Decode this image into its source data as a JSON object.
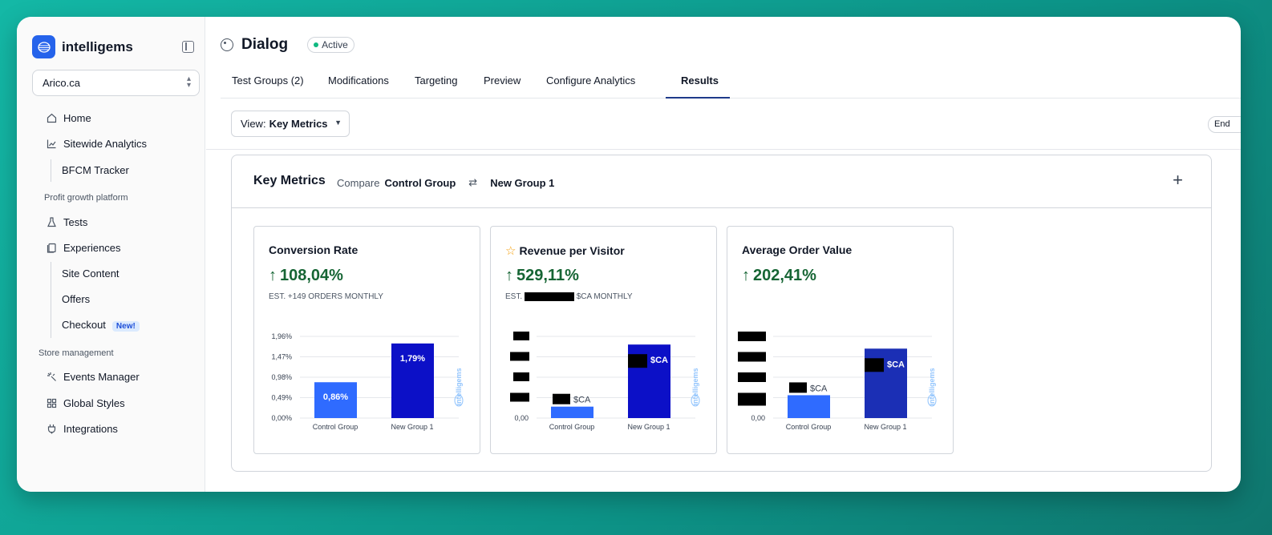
{
  "brand": {
    "name": "intelligems"
  },
  "sidebar": {
    "store": "Arico.ca",
    "items": [
      {
        "label": "Home",
        "icon": "home-icon"
      },
      {
        "label": "Sitewide Analytics",
        "icon": "chart-icon"
      },
      {
        "label": "BFCM Tracker"
      },
      {
        "label": "Profit growth platform"
      },
      {
        "label": "Tests",
        "icon": "flask-icon"
      },
      {
        "label": "Experiences",
        "icon": "layers-icon"
      },
      {
        "label": "Site Content"
      },
      {
        "label": "Offers"
      },
      {
        "label": "Checkout",
        "badge": "New!"
      },
      {
        "label": "Store management"
      },
      {
        "label": "Events Manager",
        "icon": "sparkle-icon"
      },
      {
        "label": "Global Styles",
        "icon": "grid-icon"
      },
      {
        "label": "Integrations",
        "icon": "plug-icon"
      }
    ]
  },
  "header": {
    "title": "Dialog",
    "status": "Active",
    "icon": "palette-icon"
  },
  "tabs": [
    {
      "label": "Test Groups (2)"
    },
    {
      "label": "Modifications"
    },
    {
      "label": "Targeting"
    },
    {
      "label": "Preview"
    },
    {
      "label": "Configure Analytics"
    },
    {
      "label": "Results",
      "active": true
    }
  ],
  "toolbar": {
    "view_prefix": "View:",
    "view_value": "Key Metrics",
    "end_label": "End"
  },
  "panel": {
    "title": "Key Metrics",
    "compare_label": "Compare",
    "group_a": "Control Group",
    "group_b": "New Group 1"
  },
  "cards": [
    {
      "title": "Conversion Rate",
      "value": "108,04%",
      "sub": "EST. +149 ORDERS MONTHLY"
    },
    {
      "title": "Revenue per Visitor",
      "value": "529,11%",
      "sub_prefix": "EST.",
      "sub_suffix": "$CA MONTHLY"
    },
    {
      "title": "Average Order Value",
      "value": "202,41%"
    }
  ],
  "watermark": "intelligems",
  "chart_data": [
    {
      "type": "bar",
      "title": "Conversion Rate",
      "categories": [
        "Control Group",
        "New Group 1"
      ],
      "values": [
        0.86,
        1.79
      ],
      "value_labels": [
        "0,86%",
        "1,79%"
      ],
      "y_ticks": [
        "0,00%",
        "0,49%",
        "0,98%",
        "1,47%",
        "1,96%"
      ],
      "ylim": [
        0,
        1.96
      ],
      "colors": [
        "#2f6bff",
        "#0c10c7"
      ]
    },
    {
      "type": "bar",
      "title": "Revenue per Visitor",
      "categories": [
        "Control Group",
        "New Group 1"
      ],
      "values": [
        0.14,
        0.9
      ],
      "value_labels": [
        "$CA",
        "$CA"
      ],
      "y_ticks": [
        "0,00"
      ],
      "ylim": [
        0,
        1
      ],
      "colors": [
        "#2f6bff",
        "#0c10c7"
      ]
    },
    {
      "type": "bar",
      "title": "Average Order Value",
      "categories": [
        "Control Group",
        "New Group 1"
      ],
      "values": [
        0.28,
        0.85
      ],
      "value_labels": [
        "$CA",
        "$CA"
      ],
      "y_ticks": [
        "0,00"
      ],
      "ylim": [
        0,
        1
      ],
      "colors": [
        "#2f6bff",
        "#1b2fb5"
      ]
    }
  ]
}
